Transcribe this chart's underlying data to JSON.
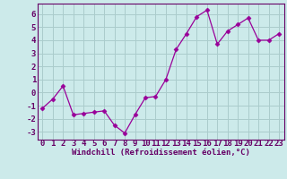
{
  "x": [
    0,
    1,
    2,
    3,
    4,
    5,
    6,
    7,
    8,
    9,
    10,
    11,
    12,
    13,
    14,
    15,
    16,
    17,
    18,
    19,
    20,
    21,
    22,
    23
  ],
  "y": [
    -1.2,
    -0.5,
    0.5,
    -1.7,
    -1.6,
    -1.5,
    -1.4,
    -2.5,
    -3.1,
    -1.7,
    -0.4,
    -0.3,
    1.0,
    3.3,
    4.5,
    5.8,
    6.3,
    3.7,
    4.7,
    5.2,
    5.7,
    4.0,
    4.0,
    4.5
  ],
  "line_color": "#990099",
  "marker": "D",
  "marker_size": 2.5,
  "bg_color": "#cceaea",
  "grid_color": "#aacccc",
  "xlabel": "Windchill (Refroidissement éolien,°C)",
  "ylabel_ticks": [
    -3,
    -2,
    -1,
    0,
    1,
    2,
    3,
    4,
    5,
    6
  ],
  "xtick_labels": [
    "0",
    "1",
    "2",
    "3",
    "4",
    "5",
    "6",
    "7",
    "8",
    "9",
    "10",
    "11",
    "12",
    "13",
    "14",
    "15",
    "16",
    "17",
    "18",
    "19",
    "20",
    "21",
    "22",
    "23"
  ],
  "xlim": [
    -0.5,
    23.5
  ],
  "ylim": [
    -3.6,
    6.8
  ],
  "tick_color": "#660066",
  "label_color": "#660066",
  "axis_color": "#660066",
  "font_size_xlabel": 6.5,
  "font_size_tick": 6.5
}
